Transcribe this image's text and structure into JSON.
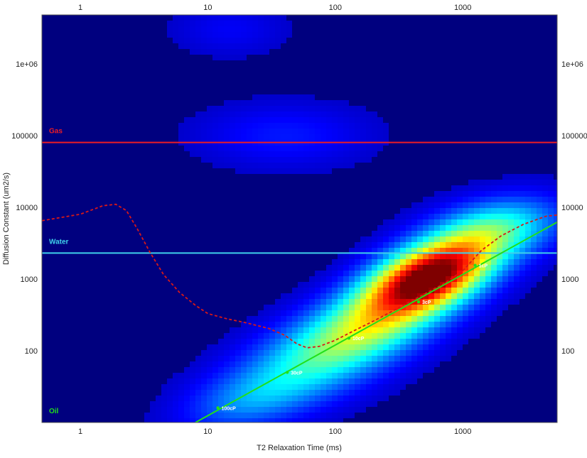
{
  "chart_data": {
    "type": "heatmap",
    "title": "",
    "xlabel": "T2 Relaxation Time (ms)",
    "ylabel": "Diffusion Constant (um2/s)",
    "x_scale": "log",
    "y_scale": "log",
    "xlim": [
      0.5,
      5500
    ],
    "ylim": [
      10,
      4800000
    ],
    "x_ticks": [
      {
        "value": 1,
        "label": "1"
      },
      {
        "value": 10,
        "label": "10"
      },
      {
        "value": 100,
        "label": "100"
      },
      {
        "value": 1000,
        "label": "1000"
      }
    ],
    "y_ticks": [
      {
        "value": 100,
        "label": "100"
      },
      {
        "value": 1000,
        "label": "1000"
      },
      {
        "value": 10000,
        "label": "10000"
      },
      {
        "value": 100000,
        "label": "100000"
      },
      {
        "value": 1000000,
        "label": "1e+06"
      }
    ],
    "reference_lines": [
      {
        "label": "Gas",
        "y": 80000,
        "color": "#ee1c24"
      },
      {
        "label": "Water",
        "y": 2300,
        "color": "#3fd0ea"
      }
    ],
    "oil_line": {
      "label": "Oil",
      "color": "#22e01a",
      "points": [
        [
          8,
          10
        ],
        [
          5500,
          6200
        ]
      ]
    },
    "viscosity_markers": [
      {
        "label": "100cP",
        "x": 12,
        "y": 16
      },
      {
        "label": "30cP",
        "x": 42,
        "y": 50
      },
      {
        "label": "10cP",
        "x": 128,
        "y": 150
      },
      {
        "label": "3cP",
        "x": 450,
        "y": 480
      },
      {
        "label": "1cP",
        "x": 1250,
        "y": 1550
      }
    ],
    "dashed_curve": {
      "color": "#d81818",
      "points": [
        [
          0.5,
          6500
        ],
        [
          1.0,
          8000
        ],
        [
          1.5,
          10500
        ],
        [
          1.9,
          11000
        ],
        [
          2.3,
          9000
        ],
        [
          2.8,
          5000
        ],
        [
          3.5,
          2400
        ],
        [
          4.5,
          1150
        ],
        [
          6,
          650
        ],
        [
          8,
          430
        ],
        [
          10,
          330
        ],
        [
          14,
          280
        ],
        [
          20,
          245
        ],
        [
          30,
          205
        ],
        [
          40,
          165
        ],
        [
          50,
          125
        ],
        [
          60,
          110
        ],
        [
          75,
          115
        ],
        [
          100,
          140
        ],
        [
          140,
          190
        ],
        [
          200,
          260
        ],
        [
          300,
          380
        ],
        [
          450,
          560
        ],
        [
          700,
          850
        ],
        [
          1000,
          1300
        ],
        [
          1400,
          2500
        ],
        [
          2000,
          4000
        ],
        [
          3000,
          5800
        ],
        [
          4500,
          7500
        ],
        [
          5500,
          7800
        ]
      ]
    },
    "colorscale": [
      "#00007f",
      "#0000ff",
      "#0080ff",
      "#00ffff",
      "#80ff80",
      "#ffff00",
      "#ff8000",
      "#ff0000",
      "#7f0000"
    ],
    "density_peaks": [
      {
        "x": 550,
        "y": 1100,
        "sx": 0.34,
        "sy": 0.36,
        "rho": 0.5,
        "amp": 1.0
      },
      {
        "x": 180,
        "y": 220,
        "sx": 0.42,
        "sy": 0.42,
        "rho": 0.55,
        "amp": 0.42
      },
      {
        "x": 1800,
        "y": 5000,
        "sx": 0.35,
        "sy": 0.3,
        "rho": 0.3,
        "amp": 0.34
      },
      {
        "x": 60,
        "y": 60,
        "sx": 0.45,
        "sy": 0.45,
        "rho": 0.5,
        "amp": 0.22
      },
      {
        "x": 20,
        "y": 20,
        "sx": 0.35,
        "sy": 0.3,
        "rho": 0.4,
        "amp": 0.14
      },
      {
        "x": 40,
        "y": 100000,
        "sx": 0.45,
        "sy": 0.3,
        "rho": 0.0,
        "amp": 0.09
      },
      {
        "x": 15,
        "y": 3000000,
        "sx": 0.3,
        "sy": 0.25,
        "rho": 0.0,
        "amp": 0.06
      }
    ]
  }
}
